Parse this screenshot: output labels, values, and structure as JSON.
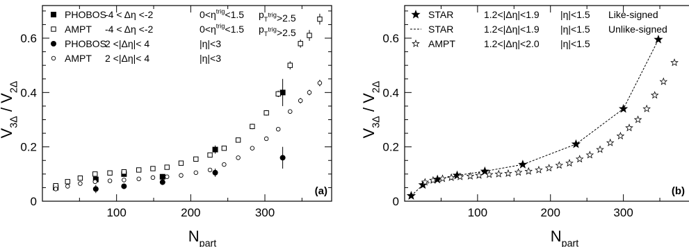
{
  "chart_data": [
    {
      "panel": "a",
      "type": "scatter",
      "panel_label": "(a)",
      "xlabel": "N_part",
      "ylabel": "V_3Δ / V_2Δ",
      "xlim": [
        0,
        390
      ],
      "ylim": [
        0,
        0.72
      ],
      "xticks": [
        100,
        200,
        300
      ],
      "yticks": [
        0,
        0.2,
        0.4,
        0.6
      ],
      "grid": false,
      "legend_position": "top-left",
      "series": [
        {
          "name": "PHOBOS -4 < Δη <-2 0<η^trig<1.5 p_T^trig>2.5",
          "legend": {
            "experiment": "PHOBOS",
            "deta": "-4 < Δη <-2",
            "eta": "0<η^trig<1.5",
            "pt": "p_T^trig>2.5"
          },
          "marker": "filled-square",
          "x": [
            18,
            72,
            110,
            162,
            233,
            324
          ],
          "y": [
            0.05,
            0.08,
            0.1,
            0.09,
            0.19,
            0.4
          ],
          "yerr": [
            0.01,
            0.01,
            0.01,
            0.01,
            0.015,
            0.05
          ]
        },
        {
          "name": "AMPT -4 < Δη <-2 0<η^trig<1.5 p_T^trig>2.5",
          "legend": {
            "experiment": "AMPT",
            "deta": "-4 < Δη <-2",
            "eta": "0<η^trig<1.5",
            "pt": "p_T^trig>2.5"
          },
          "marker": "open-square",
          "x": [
            18,
            34,
            51,
            71,
            91,
            110,
            130,
            149,
            168,
            187,
            207,
            226,
            245,
            264,
            283,
            302,
            318,
            334,
            348,
            360,
            374
          ],
          "y": [
            0.057,
            0.072,
            0.085,
            0.1,
            0.104,
            0.108,
            0.115,
            0.12,
            0.125,
            0.14,
            0.155,
            0.17,
            0.195,
            0.225,
            0.275,
            0.325,
            0.395,
            0.5,
            0.58,
            0.61,
            0.67
          ],
          "yerr": [
            0.005,
            0.005,
            0.005,
            0.005,
            0.005,
            0.005,
            0.005,
            0.005,
            0.005,
            0.005,
            0.005,
            0.006,
            0.007,
            0.008,
            0.01,
            0.01,
            0.012,
            0.015,
            0.015,
            0.02,
            0.02
          ]
        },
        {
          "name": "PHOBOS 2 <|Δη|< 4 |η|<3",
          "legend": {
            "experiment": "PHOBOS",
            "deta": "2 <|Δη|< 4",
            "eta": "|η|<3",
            "pt": ""
          },
          "marker": "filled-circle",
          "x": [
            72,
            110,
            162,
            233,
            324
          ],
          "y": [
            0.045,
            0.055,
            0.07,
            0.105,
            0.16
          ],
          "yerr": [
            0.015,
            0.01,
            0.01,
            0.015,
            0.04
          ]
        },
        {
          "name": "AMPT 2 <|Δη|< 4 |η|<3",
          "legend": {
            "experiment": "AMPT",
            "deta": "2 <|Δη|< 4",
            "eta": "|η|<3",
            "pt": ""
          },
          "marker": "open-circle",
          "x": [
            18,
            34,
            51,
            71,
            91,
            110,
            130,
            149,
            168,
            187,
            207,
            226,
            245,
            264,
            283,
            302,
            318,
            334,
            348,
            360,
            374
          ],
          "y": [
            0.045,
            0.055,
            0.065,
            0.072,
            0.075,
            0.078,
            0.082,
            0.087,
            0.09,
            0.095,
            0.105,
            0.115,
            0.135,
            0.16,
            0.195,
            0.23,
            0.265,
            0.33,
            0.37,
            0.4,
            0.435
          ],
          "yerr": [
            0.003,
            0.003,
            0.003,
            0.003,
            0.003,
            0.003,
            0.003,
            0.003,
            0.003,
            0.003,
            0.003,
            0.004,
            0.004,
            0.005,
            0.006,
            0.006,
            0.007,
            0.008,
            0.01,
            0.01,
            0.012
          ]
        }
      ]
    },
    {
      "panel": "b",
      "type": "scatter",
      "panel_label": "(b)",
      "xlabel": "N_part",
      "ylabel": "V_3Δ / V_2Δ",
      "xlim": [
        0,
        390
      ],
      "ylim": [
        0,
        0.72
      ],
      "xticks": [
        100,
        200,
        300
      ],
      "yticks": [
        0,
        0.2,
        0.4,
        0.6
      ],
      "grid": false,
      "legend_position": "top-left",
      "series": [
        {
          "name": "STAR 1.2<|Δη|<1.9 |η|<1.5 Like-signed",
          "legend": {
            "experiment": "STAR",
            "deta": "1.2<|Δη|<1.9",
            "eta": "|η|<1.5",
            "extra": "Like-signed"
          },
          "marker": "filled-star",
          "x": [
            9,
            25,
            45,
            72,
            110,
            162,
            235,
            300,
            348
          ],
          "y": [
            0.02,
            0.06,
            0.08,
            0.095,
            0.11,
            0.135,
            0.21,
            0.34,
            0.595
          ]
        },
        {
          "name": "STAR 1.2<|Δη|<1.9 |η|<1.5 Unlike-signed",
          "legend": {
            "experiment": "STAR",
            "deta": "1.2<|Δη|<1.9",
            "eta": "|η|<1.5",
            "extra": "Unlike-signed"
          },
          "marker": "dashed-line",
          "x": [
            9,
            25,
            45,
            72,
            110,
            162,
            235,
            300,
            348
          ],
          "y": [
            0.02,
            0.06,
            0.08,
            0.095,
            0.11,
            0.135,
            0.21,
            0.34,
            0.595
          ]
        },
        {
          "name": "AMPT 1.2<|Δη|<2.0 |η|<1.5",
          "legend": {
            "experiment": "AMPT",
            "deta": "1.2<|Δη|<2.0",
            "eta": "|η|<1.5",
            "extra": ""
          },
          "marker": "open-star",
          "x": [
            28,
            39,
            52,
            64,
            76,
            90,
            102,
            116,
            129,
            142,
            156,
            170,
            184,
            198,
            212,
            226,
            240,
            254,
            268,
            282,
            296,
            308,
            320,
            332,
            343,
            355,
            370
          ],
          "y": [
            0.07,
            0.077,
            0.083,
            0.087,
            0.09,
            0.092,
            0.095,
            0.098,
            0.1,
            0.102,
            0.106,
            0.11,
            0.115,
            0.122,
            0.132,
            0.14,
            0.155,
            0.17,
            0.19,
            0.215,
            0.24,
            0.27,
            0.3,
            0.34,
            0.39,
            0.44,
            0.51
          ]
        }
      ]
    }
  ]
}
